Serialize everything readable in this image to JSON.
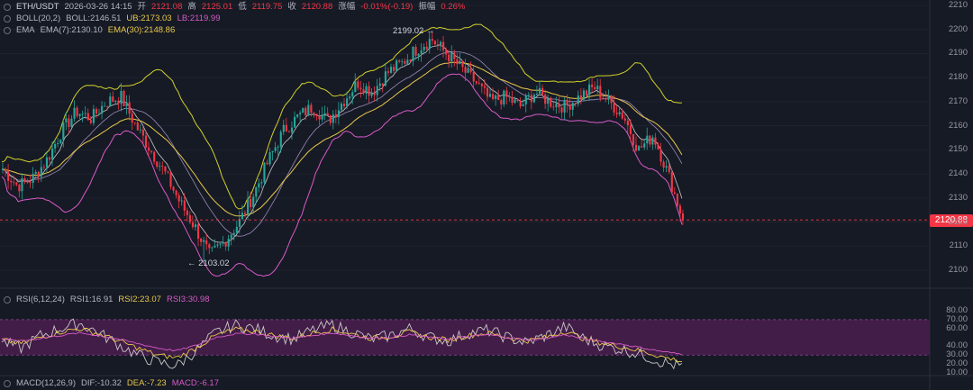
{
  "header": {
    "symbol": "ETH/USDT",
    "datetime": "2026-03-26 14:15",
    "open_label": "开",
    "open": "2121.08",
    "high_label": "高",
    "high": "2125.01",
    "low_label": "低",
    "low": "2119.75",
    "close_label": "收",
    "close": "2120.88",
    "change_label": "涨幅",
    "change": "-0.01%(-0.19)",
    "amp_label": "振幅",
    "amp": "0.26%"
  },
  "boll": {
    "name": "BOLL(20,2)",
    "mid": "BOLL:2146.51",
    "ub": "UB:2173.03",
    "lb": "LB:2119.99"
  },
  "ema": {
    "name": "EMA",
    "ema7": "EMA(7):2130.10",
    "ema30": "EMA(30):2148.86"
  },
  "rsi": {
    "name": "RSI(6,12,24)",
    "rsi1": "RSI1:16.91",
    "rsi2": "RSI2:23.07",
    "rsi3": "RSI3:30.98"
  },
  "macd": {
    "name": "MACD(12,26,9)",
    "dif": "DIF:-10.32",
    "dea": "DEA:-7.23",
    "macd": "MACD:-6.17"
  },
  "annotations": {
    "high": "2199.02 →",
    "low": "← 2103.02"
  },
  "current_price_tag": "2120.88",
  "colors": {
    "up": "#26a69a",
    "down": "#f23645",
    "boll_band": "#d1d12a",
    "boll_mid": "#d85ac7",
    "ema7": "#c8c8c8",
    "ema30": "#e9c84a",
    "rsi_zone": "#4a1e4f"
  },
  "chart_data": [
    {
      "type": "candlestick",
      "title": "ETH/USDT",
      "y_ticks": [
        2210,
        2200,
        2190,
        2180,
        2170,
        2160,
        2150,
        2140,
        2130,
        2120,
        2110,
        2100
      ],
      "ylim": [
        2095,
        2212
      ],
      "high_marker": 2199.02,
      "low_marker": 2103.02,
      "last_price": 2120.88,
      "close_path": [
        2142,
        2135,
        2138,
        2146,
        2158,
        2166,
        2163,
        2170,
        2172,
        2160,
        2150,
        2140,
        2128,
        2118,
        2106,
        2112,
        2120,
        2132,
        2146,
        2158,
        2164,
        2168,
        2162,
        2170,
        2178,
        2174,
        2182,
        2186,
        2192,
        2196,
        2190,
        2184,
        2178,
        2170,
        2172,
        2168,
        2174,
        2170,
        2168,
        2172,
        2176,
        2170,
        2164,
        2150,
        2156,
        2140,
        2121
      ]
    },
    {
      "type": "line",
      "title": "RSI(6,12,24)",
      "y_ticks": [
        80,
        70,
        60,
        40,
        30,
        20,
        10
      ],
      "ylim": [
        5,
        85
      ],
      "band": [
        30,
        70
      ],
      "series": [
        {
          "name": "RSI1",
          "values": [
            45,
            38,
            52,
            60,
            66,
            55,
            42,
            30,
            22,
            18,
            35,
            55,
            64,
            60,
            52,
            48,
            58,
            64,
            56,
            48,
            52,
            60,
            50,
            46,
            55,
            58,
            50,
            44,
            52,
            62,
            48,
            40,
            36,
            30,
            22,
            16.91
          ]
        },
        {
          "name": "RSI2",
          "values": [
            47,
            43,
            50,
            56,
            60,
            54,
            46,
            38,
            30,
            27,
            38,
            52,
            59,
            57,
            52,
            49,
            55,
            59,
            54,
            49,
            51,
            56,
            50,
            47,
            52,
            55,
            50,
            46,
            50,
            57,
            48,
            43,
            39,
            34,
            28,
            23.07
          ]
        },
        {
          "name": "RSI3",
          "values": [
            48,
            46,
            49,
            52,
            55,
            52,
            48,
            43,
            38,
            35,
            41,
            50,
            54,
            54,
            51,
            49,
            52,
            55,
            52,
            49,
            50,
            53,
            50,
            48,
            51,
            53,
            50,
            47,
            49,
            53,
            48,
            45,
            42,
            38,
            34,
            30.98
          ]
        }
      ]
    }
  ]
}
